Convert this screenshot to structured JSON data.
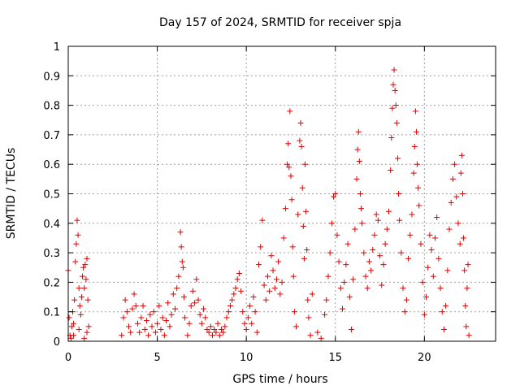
{
  "chart_data": {
    "type": "scatter",
    "title": "Day 157 of 2024, SRMTID for receiver spja",
    "xlabel": "GPS time / hours",
    "ylabel": "SRMTID / TECUs",
    "xlim": [
      0,
      24
    ],
    "ylim": [
      0,
      1
    ],
    "xticks": [
      0,
      5,
      10,
      15,
      20
    ],
    "xtick_labels": [
      "0",
      "5",
      "10",
      "15",
      "20"
    ],
    "yticks": [
      0,
      0.1,
      0.2,
      0.3,
      0.4,
      0.5,
      0.6,
      0.7,
      0.8,
      0.9,
      1
    ],
    "ytick_labels": [
      "0",
      "0.1",
      "0.2",
      "0.3",
      "0.4",
      "0.5",
      "0.6",
      "0.7",
      "0.8",
      "0.9",
      "1"
    ],
    "grid": true,
    "marker": "+",
    "color": "#e00000",
    "series": [
      {
        "name": "SRMTID",
        "points": [
          [
            0.0,
            0.24
          ],
          [
            0.05,
            0.08
          ],
          [
            0.1,
            0.02
          ],
          [
            0.15,
            0.01
          ],
          [
            0.2,
            0.05
          ],
          [
            0.25,
            0.1
          ],
          [
            0.3,
            0.06
          ],
          [
            0.35,
            0.14
          ],
          [
            0.4,
            0.27
          ],
          [
            0.45,
            0.33
          ],
          [
            0.5,
            0.41
          ],
          [
            0.55,
            0.36
          ],
          [
            0.6,
            0.18
          ],
          [
            0.65,
            0.12
          ],
          [
            0.7,
            0.09
          ],
          [
            0.75,
            0.15
          ],
          [
            0.8,
            0.22
          ],
          [
            0.85,
            0.25
          ],
          [
            0.9,
            0.18
          ],
          [
            0.95,
            0.26
          ],
          [
            1.0,
            0.21
          ],
          [
            1.05,
            0.28
          ],
          [
            1.1,
            0.14
          ],
          [
            1.15,
            0.05
          ],
          [
            0.3,
            0.02
          ],
          [
            0.6,
            0.04
          ],
          [
            0.9,
            0.01
          ],
          [
            1.05,
            0.03
          ],
          [
            3.0,
            0.02
          ],
          [
            3.1,
            0.08
          ],
          [
            3.2,
            0.14
          ],
          [
            3.3,
            0.1
          ],
          [
            3.4,
            0.05
          ],
          [
            3.5,
            0.03
          ],
          [
            3.6,
            0.11
          ],
          [
            3.7,
            0.16
          ],
          [
            3.8,
            0.12
          ],
          [
            3.9,
            0.06
          ],
          [
            4.0,
            0.03
          ],
          [
            4.1,
            0.08
          ],
          [
            4.2,
            0.12
          ],
          [
            4.3,
            0.04
          ],
          [
            4.4,
            0.07
          ],
          [
            4.5,
            0.02
          ],
          [
            4.6,
            0.09
          ],
          [
            4.7,
            0.05
          ],
          [
            4.8,
            0.1
          ],
          [
            4.9,
            0.03
          ],
          [
            5.0,
            0.06
          ],
          [
            5.1,
            0.12
          ],
          [
            5.2,
            0.04
          ],
          [
            5.3,
            0.08
          ],
          [
            5.4,
            0.02
          ],
          [
            5.5,
            0.07
          ],
          [
            5.6,
            0.13
          ],
          [
            5.7,
            0.05
          ],
          [
            5.8,
            0.09
          ],
          [
            5.9,
            0.16
          ],
          [
            6.0,
            0.11
          ],
          [
            6.1,
            0.18
          ],
          [
            6.2,
            0.22
          ],
          [
            6.3,
            0.37
          ],
          [
            6.35,
            0.32
          ],
          [
            6.4,
            0.27
          ],
          [
            6.45,
            0.25
          ],
          [
            6.5,
            0.15
          ],
          [
            6.55,
            0.08
          ],
          [
            6.7,
            0.02
          ],
          [
            6.8,
            0.06
          ],
          [
            6.9,
            0.12
          ],
          [
            7.0,
            0.17
          ],
          [
            7.1,
            0.13
          ],
          [
            7.2,
            0.21
          ],
          [
            7.3,
            0.14
          ],
          [
            7.4,
            0.09
          ],
          [
            7.5,
            0.06
          ],
          [
            7.6,
            0.11
          ],
          [
            7.7,
            0.08
          ],
          [
            7.8,
            0.04
          ],
          [
            7.9,
            0.03
          ],
          [
            8.0,
            0.05
          ],
          [
            8.1,
            0.02
          ],
          [
            8.2,
            0.04
          ],
          [
            8.3,
            0.03
          ],
          [
            8.4,
            0.06
          ],
          [
            8.5,
            0.02
          ],
          [
            8.6,
            0.04
          ],
          [
            8.7,
            0.03
          ],
          [
            8.8,
            0.05
          ],
          [
            8.9,
            0.08
          ],
          [
            9.0,
            0.1
          ],
          [
            9.1,
            0.12
          ],
          [
            9.2,
            0.14
          ],
          [
            9.3,
            0.16
          ],
          [
            9.4,
            0.18
          ],
          [
            9.5,
            0.21
          ],
          [
            9.6,
            0.23
          ],
          [
            9.7,
            0.17
          ],
          [
            9.8,
            0.1
          ],
          [
            9.9,
            0.06
          ],
          [
            10.0,
            0.04
          ],
          [
            10.1,
            0.08
          ],
          [
            10.2,
            0.12
          ],
          [
            10.3,
            0.06
          ],
          [
            10.4,
            0.15
          ],
          [
            10.5,
            0.1
          ],
          [
            10.6,
            0.03
          ],
          [
            10.7,
            0.26
          ],
          [
            10.8,
            0.32
          ],
          [
            10.9,
            0.41
          ],
          [
            11.0,
            0.19
          ],
          [
            11.1,
            0.14
          ],
          [
            11.2,
            0.22
          ],
          [
            11.3,
            0.17
          ],
          [
            11.4,
            0.29
          ],
          [
            11.5,
            0.24
          ],
          [
            11.6,
            0.18
          ],
          [
            11.7,
            0.21
          ],
          [
            11.8,
            0.27
          ],
          [
            11.9,
            0.16
          ],
          [
            12.0,
            0.2
          ],
          [
            12.1,
            0.35
          ],
          [
            12.2,
            0.45
          ],
          [
            12.3,
            0.6
          ],
          [
            12.35,
            0.67
          ],
          [
            12.4,
            0.59
          ],
          [
            12.45,
            0.78
          ],
          [
            12.5,
            0.56
          ],
          [
            12.55,
            0.48
          ],
          [
            12.6,
            0.32
          ],
          [
            12.65,
            0.22
          ],
          [
            12.7,
            0.1
          ],
          [
            12.8,
            0.05
          ],
          [
            12.9,
            0.43
          ],
          [
            13.0,
            0.68
          ],
          [
            13.05,
            0.74
          ],
          [
            13.1,
            0.66
          ],
          [
            13.15,
            0.52
          ],
          [
            13.2,
            0.39
          ],
          [
            13.25,
            0.28
          ],
          [
            13.3,
            0.6
          ],
          [
            13.35,
            0.44
          ],
          [
            13.4,
            0.31
          ],
          [
            13.45,
            0.14
          ],
          [
            13.5,
            0.08
          ],
          [
            13.6,
            0.02
          ],
          [
            13.7,
            0.16
          ],
          [
            14.0,
            0.03
          ],
          [
            14.2,
            0.01
          ],
          [
            14.4,
            0.09
          ],
          [
            14.5,
            0.14
          ],
          [
            14.6,
            0.22
          ],
          [
            14.7,
            0.3
          ],
          [
            14.8,
            0.4
          ],
          [
            14.9,
            0.49
          ],
          [
            15.0,
            0.5
          ],
          [
            15.1,
            0.36
          ],
          [
            15.2,
            0.27
          ],
          [
            15.3,
            0.18
          ],
          [
            15.4,
            0.11
          ],
          [
            15.5,
            0.2
          ],
          [
            15.6,
            0.26
          ],
          [
            15.7,
            0.33
          ],
          [
            15.8,
            0.15
          ],
          [
            15.9,
            0.04
          ],
          [
            16.0,
            0.21
          ],
          [
            16.1,
            0.38
          ],
          [
            16.2,
            0.55
          ],
          [
            16.25,
            0.65
          ],
          [
            16.3,
            0.71
          ],
          [
            16.35,
            0.61
          ],
          [
            16.4,
            0.5
          ],
          [
            16.45,
            0.45
          ],
          [
            16.5,
            0.4
          ],
          [
            16.6,
            0.3
          ],
          [
            16.7,
            0.22
          ],
          [
            16.8,
            0.18
          ],
          [
            16.9,
            0.27
          ],
          [
            17.0,
            0.24
          ],
          [
            17.1,
            0.31
          ],
          [
            17.2,
            0.36
          ],
          [
            17.3,
            0.43
          ],
          [
            17.4,
            0.41
          ],
          [
            17.5,
            0.29
          ],
          [
            17.6,
            0.19
          ],
          [
            17.7,
            0.26
          ],
          [
            17.8,
            0.33
          ],
          [
            17.9,
            0.38
          ],
          [
            18.0,
            0.44
          ],
          [
            18.1,
            0.58
          ],
          [
            18.15,
            0.69
          ],
          [
            18.2,
            0.79
          ],
          [
            18.25,
            0.87
          ],
          [
            18.3,
            0.92
          ],
          [
            18.35,
            0.85
          ],
          [
            18.4,
            0.8
          ],
          [
            18.45,
            0.74
          ],
          [
            18.5,
            0.62
          ],
          [
            18.55,
            0.5
          ],
          [
            18.6,
            0.41
          ],
          [
            18.7,
            0.3
          ],
          [
            18.8,
            0.18
          ],
          [
            18.9,
            0.1
          ],
          [
            19.0,
            0.14
          ],
          [
            19.1,
            0.28
          ],
          [
            19.2,
            0.36
          ],
          [
            19.3,
            0.43
          ],
          [
            19.4,
            0.57
          ],
          [
            19.45,
            0.66
          ],
          [
            19.5,
            0.78
          ],
          [
            19.55,
            0.71
          ],
          [
            19.6,
            0.6
          ],
          [
            19.65,
            0.52
          ],
          [
            19.7,
            0.46
          ],
          [
            19.8,
            0.33
          ],
          [
            19.9,
            0.2
          ],
          [
            20.0,
            0.09
          ],
          [
            20.1,
            0.15
          ],
          [
            20.2,
            0.25
          ],
          [
            20.3,
            0.36
          ],
          [
            20.4,
            0.31
          ],
          [
            20.5,
            0.22
          ],
          [
            20.6,
            0.35
          ],
          [
            20.7,
            0.42
          ],
          [
            20.8,
            0.28
          ],
          [
            20.9,
            0.18
          ],
          [
            21.0,
            0.1
          ],
          [
            21.1,
            0.04
          ],
          [
            21.2,
            0.12
          ],
          [
            21.3,
            0.24
          ],
          [
            21.4,
            0.38
          ],
          [
            21.5,
            0.47
          ],
          [
            21.6,
            0.55
          ],
          [
            21.7,
            0.6
          ],
          [
            21.8,
            0.49
          ],
          [
            21.9,
            0.4
          ],
          [
            22.0,
            0.33
          ],
          [
            22.05,
            0.57
          ],
          [
            22.1,
            0.63
          ],
          [
            22.15,
            0.5
          ],
          [
            22.2,
            0.35
          ],
          [
            22.25,
            0.24
          ],
          [
            22.3,
            0.12
          ],
          [
            22.35,
            0.05
          ],
          [
            22.4,
            0.18
          ],
          [
            22.45,
            0.26
          ],
          [
            22.5,
            0.02
          ]
        ]
      }
    ]
  }
}
